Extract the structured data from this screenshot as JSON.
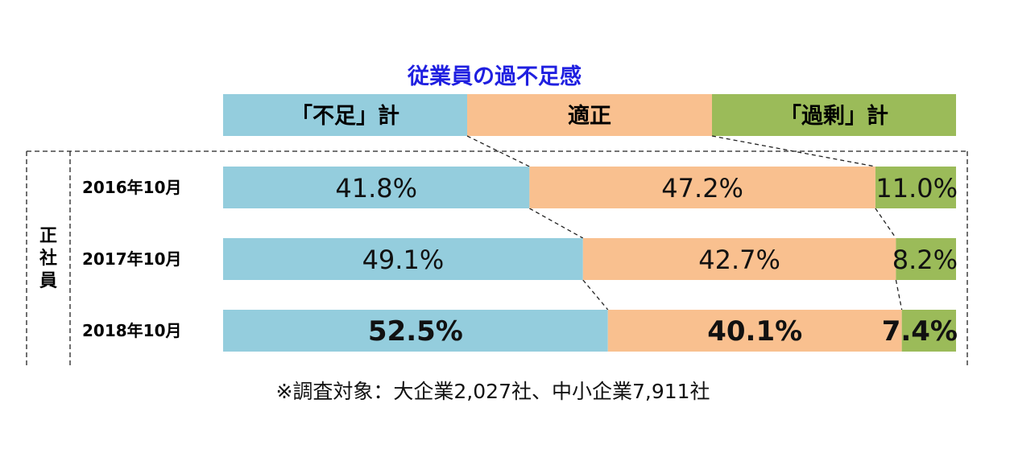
{
  "chart_data": {
    "type": "bar",
    "orientation": "horizontal",
    "stacked": true,
    "normalized": true,
    "title": "従業員の過不足感",
    "group_label": "正社員",
    "categories": [
      "2016年10月",
      "2017年10月",
      "2018年10月"
    ],
    "series": [
      {
        "name": "「不足」計",
        "values": [
          41.8,
          49.1,
          52.5
        ],
        "color": "#94CDDD"
      },
      {
        "name": "適正",
        "values": [
          47.2,
          42.7,
          40.1
        ],
        "color": "#F9C08F"
      },
      {
        "name": "「過剰」計",
        "values": [
          11.0,
          8.2,
          7.4
        ],
        "color": "#9BBB59"
      }
    ],
    "value_labels": [
      [
        "41.8%",
        "47.2%",
        "11.0%"
      ],
      [
        "49.1%",
        "42.7%",
        "8.2%"
      ],
      [
        "52.5%",
        "40.1%",
        "7.4%"
      ]
    ],
    "emphasized_category": "2018年10月",
    "legend_position": "top",
    "title_color": "#1F1FE0",
    "footnote": "※調査対象：大企業2,027社、中小企業7,911社"
  }
}
